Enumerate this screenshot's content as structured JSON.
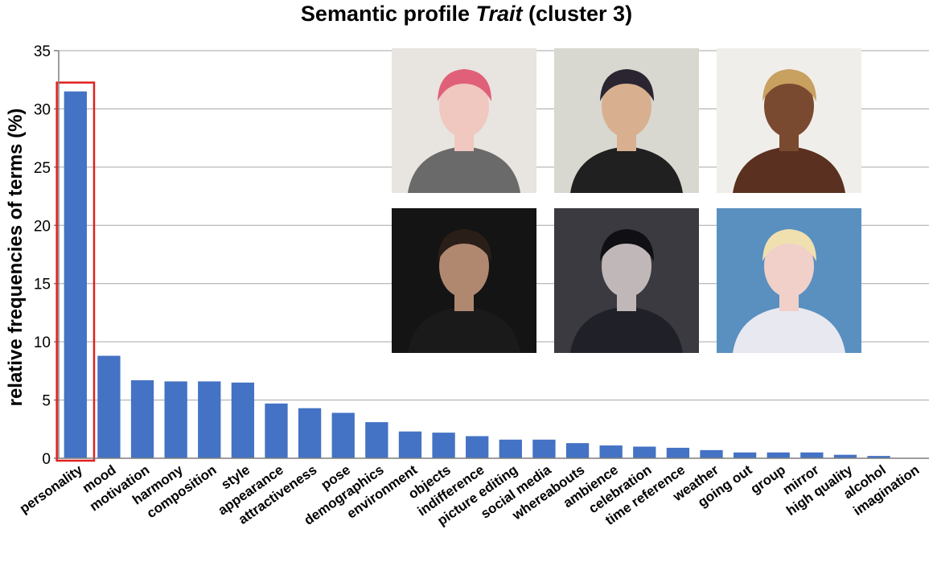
{
  "title": {
    "prefix": "Semantic profile ",
    "emphasis": "Trait",
    "suffix": " (cluster 3)"
  },
  "chart_data": {
    "type": "bar",
    "title": "Semantic profile Trait (cluster 3)",
    "xlabel": "",
    "ylabel": "relative frequencies of terms (%)",
    "ylim": [
      0,
      35
    ],
    "yticks": [
      0,
      5,
      10,
      15,
      20,
      25,
      30,
      35
    ],
    "grid": true,
    "bar_color": "#4472c4",
    "highlight_color": "#e02020",
    "highlighted_category": "personality",
    "categories": [
      "personality",
      "mood",
      "motivation",
      "harmony",
      "composition",
      "style",
      "appearance",
      "attractiveness",
      "pose",
      "demographics",
      "environment",
      "objects",
      "indifference",
      "picture editing",
      "social media",
      "whereabouts",
      "ambience",
      "celebration",
      "time reference",
      "weather",
      "going out",
      "group",
      "mirror",
      "high quality",
      "alcohol",
      "imagination"
    ],
    "values": [
      31.5,
      8.8,
      6.7,
      6.6,
      6.6,
      6.5,
      4.7,
      4.3,
      3.9,
      3.1,
      2.3,
      2.2,
      1.9,
      1.6,
      1.6,
      1.3,
      1.1,
      1.0,
      0.9,
      0.7,
      0.5,
      0.5,
      0.5,
      0.3,
      0.2,
      0.0
    ]
  },
  "photos": [
    {
      "name": "photo-pink-hair-selfie",
      "bg": "#e8e4e0",
      "skin": "#f0c8c0",
      "hair": "#e0607a",
      "shirt": "#6a6a6a"
    },
    {
      "name": "photo-hat-man",
      "bg": "#d8d8d0",
      "skin": "#d8b090",
      "hair": "#2a2530",
      "shirt": "#202020"
    },
    {
      "name": "photo-sunglasses-woman",
      "bg": "#f0eeea",
      "skin": "#7a4a30",
      "hair": "#c8a060",
      "shirt": "#5a3020"
    },
    {
      "name": "photo-dark-man",
      "bg": "#141414",
      "skin": "#b08870",
      "hair": "#2a1e18",
      "shirt": "#1a1a1a"
    },
    {
      "name": "photo-bookshelf-woman",
      "bg": "#3a3a40",
      "skin": "#c0b8b8",
      "hair": "#101014",
      "shirt": "#202028"
    },
    {
      "name": "photo-veil-person",
      "bg": "#5a90c0",
      "skin": "#f0d0c8",
      "hair": "#f0e0b0",
      "shirt": "#e8e8f0"
    }
  ]
}
